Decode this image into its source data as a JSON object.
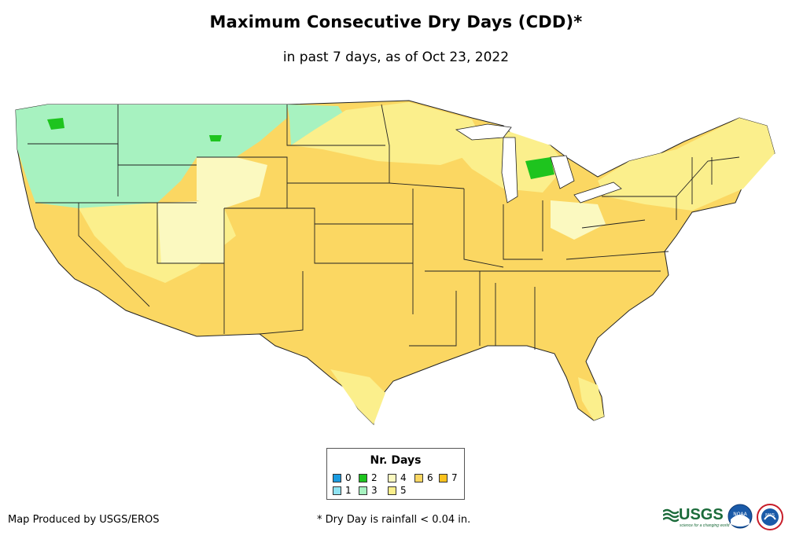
{
  "title": "Maximum Consecutive Dry Days (CDD)*",
  "subtitle": "in past 7 days, as of Oct 23, 2022",
  "legend": {
    "title": "Nr. Days",
    "items": [
      {
        "label": "0",
        "color": "#1a9be0"
      },
      {
        "label": "1",
        "color": "#8fe3f2"
      },
      {
        "label": "2",
        "color": "#1ec41e"
      },
      {
        "label": "3",
        "color": "#a7f2c0"
      },
      {
        "label": "4",
        "color": "#fbf9c0"
      },
      {
        "label": "5",
        "color": "#fbef8c"
      },
      {
        "label": "6",
        "color": "#fbd762"
      },
      {
        "label": "7",
        "color": "#fbc21e"
      }
    ]
  },
  "credit": "Map Produced by USGS/EROS",
  "footnote": "* Dry Day is rainfall < 0.04 in.",
  "logos": {
    "usgs": "USGS",
    "usgs_tagline": "science for a changing world",
    "noaa": "NOAA",
    "nws": "NWS"
  }
}
